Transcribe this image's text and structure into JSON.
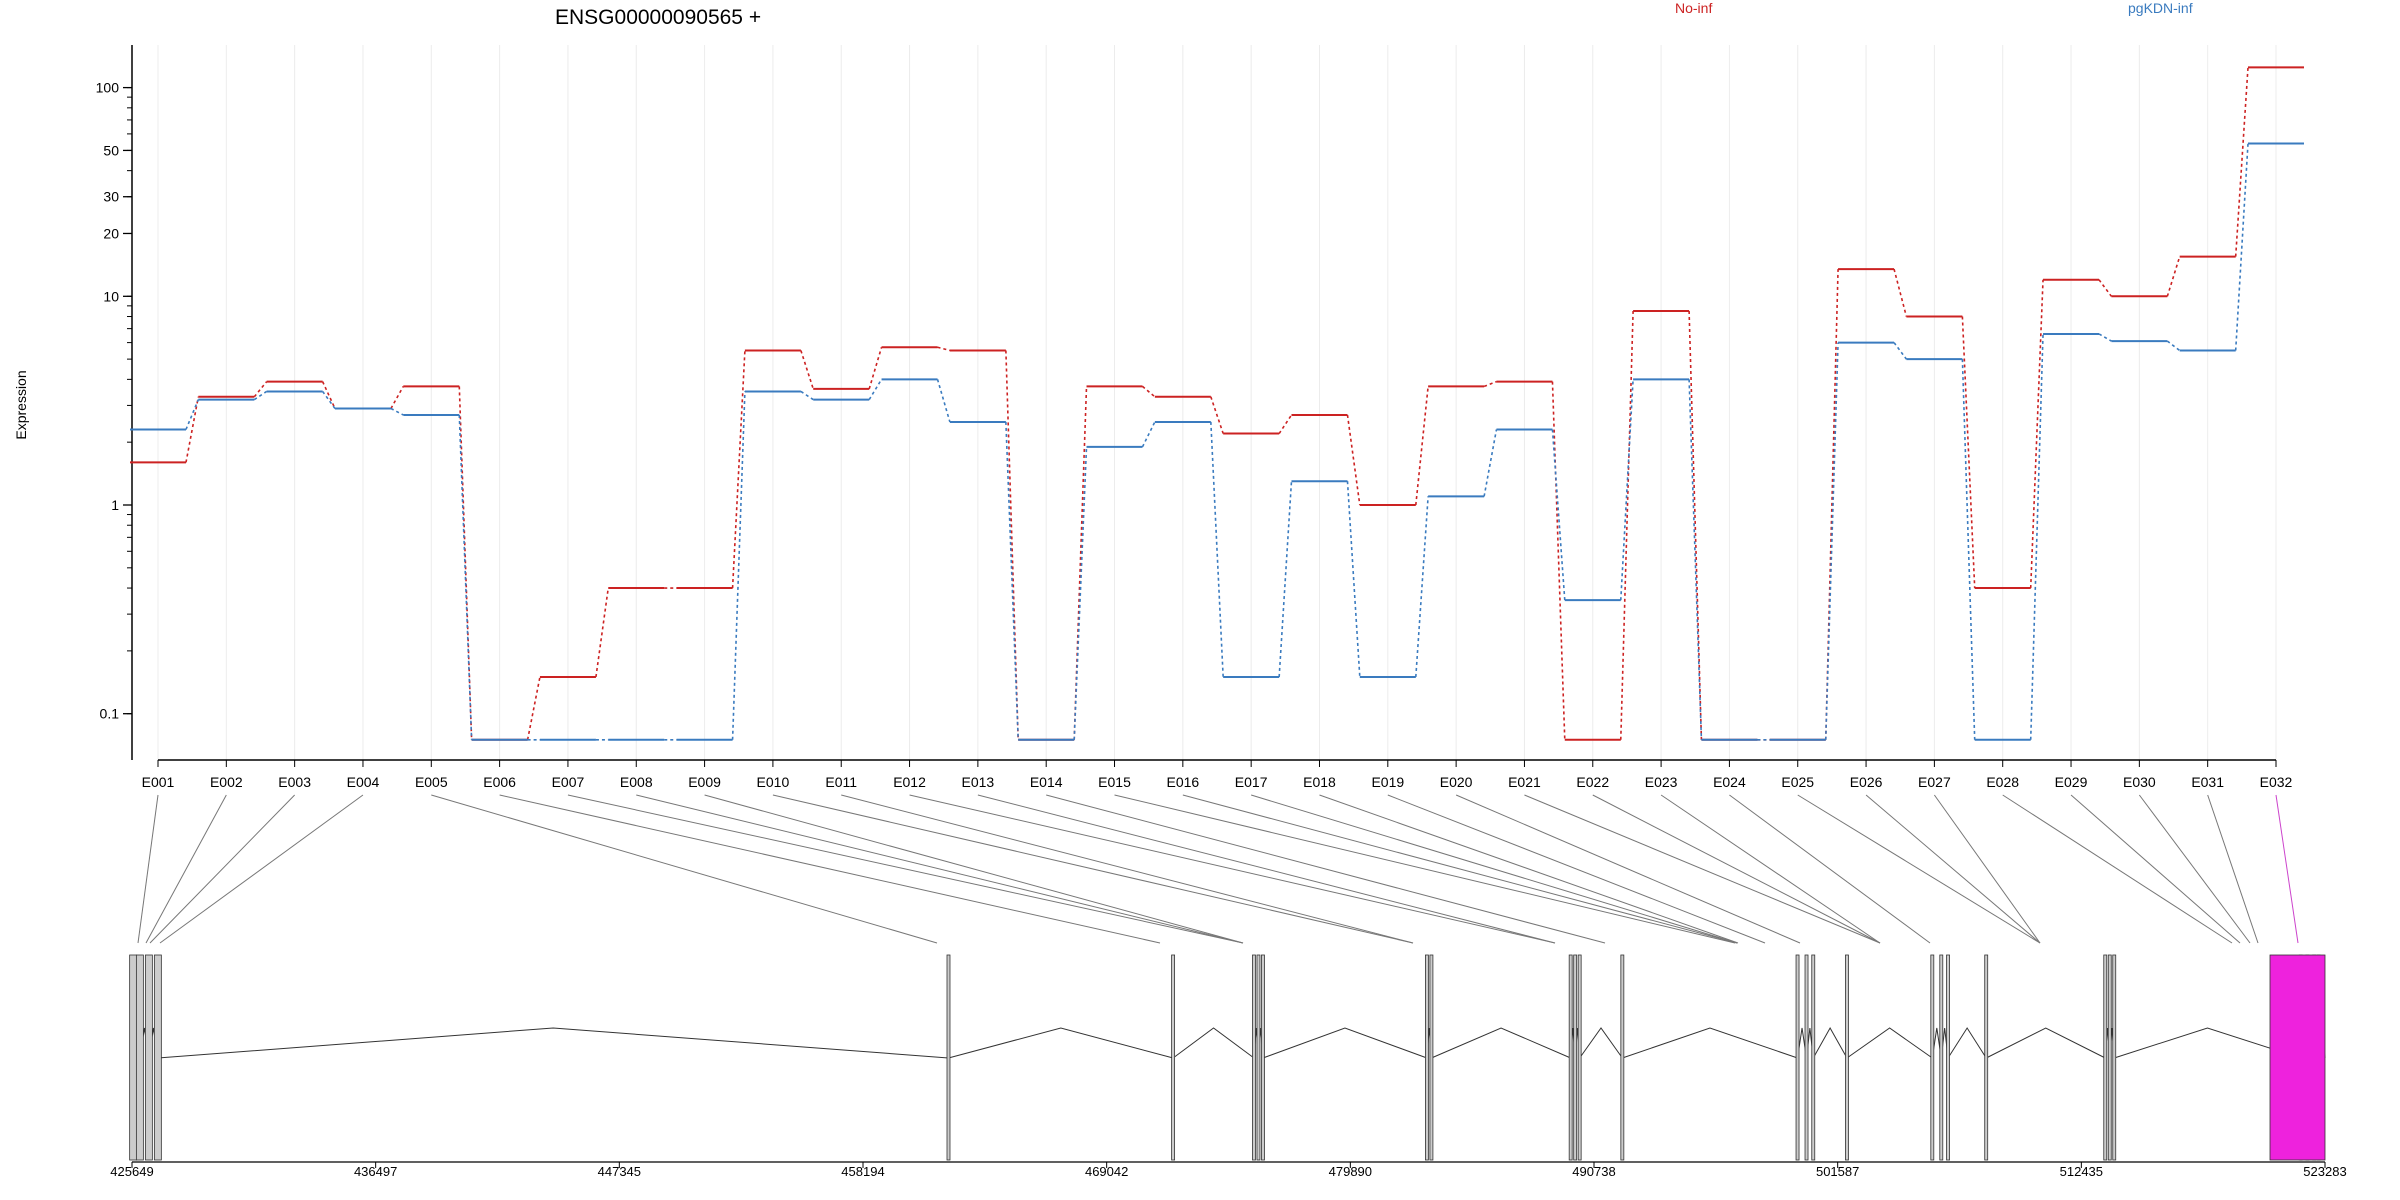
{
  "chart_data": {
    "type": "line",
    "title": "ENSG00000090565 +",
    "ylabel": "Expression",
    "y_scale": "log",
    "ylim": [
      0.06,
      160
    ],
    "y_ticks": [
      {
        "value": 0.1,
        "label": "0.1"
      },
      {
        "value": 1,
        "label": "1"
      },
      {
        "value": 10,
        "label": "10"
      },
      {
        "value": 20,
        "label": "20"
      },
      {
        "value": 30,
        "label": "30"
      },
      {
        "value": 50,
        "label": "50"
      },
      {
        "value": 100,
        "label": "100"
      }
    ],
    "categories": [
      "E001",
      "E002",
      "E003",
      "E004",
      "E005",
      "E006",
      "E007",
      "E008",
      "E009",
      "E010",
      "E011",
      "E012",
      "E013",
      "E014",
      "E015",
      "E016",
      "E017",
      "E018",
      "E019",
      "E020",
      "E021",
      "E022",
      "E023",
      "E024",
      "E025",
      "E026",
      "E027",
      "E028",
      "E029",
      "E030",
      "E031",
      "E032"
    ],
    "series": [
      {
        "name": "No-inf",
        "color": "#cc2222",
        "values": [
          1.6,
          3.3,
          3.9,
          2.9,
          3.7,
          0.075,
          0.15,
          0.4,
          0.4,
          5.5,
          3.6,
          5.7,
          5.5,
          0.075,
          3.7,
          3.3,
          2.2,
          2.7,
          1.0,
          3.7,
          3.9,
          0.075,
          8.5,
          0.075,
          0.075,
          13.5,
          8.0,
          0.4,
          12.0,
          10.0,
          15.5,
          125
        ]
      },
      {
        "name": "pgKDN-inf",
        "color": "#3a7bbf",
        "values": [
          2.3,
          3.2,
          3.5,
          2.9,
          2.7,
          0.075,
          0.075,
          0.075,
          0.075,
          3.5,
          3.2,
          4.0,
          2.5,
          0.075,
          1.9,
          2.5,
          0.15,
          1.3,
          0.15,
          1.1,
          2.3,
          0.35,
          4.0,
          0.075,
          0.075,
          6.0,
          5.0,
          0.075,
          6.6,
          6.1,
          5.5,
          54
        ]
      }
    ],
    "gene_model": {
      "x_ticks": [
        425649,
        436497,
        447345,
        458194,
        469042,
        479890,
        490738,
        501587,
        512435,
        523283
      ],
      "xlim": [
        425649,
        523283
      ],
      "highlight_color": "#ee22dd",
      "exon_positions": [
        425700,
        426000,
        426400,
        426800,
        462000,
        472000,
        475600,
        475800,
        476000,
        483300,
        483500,
        489700,
        489900,
        490100,
        492000,
        499800,
        500200,
        500500,
        502000,
        505800,
        506200,
        506500,
        508200,
        513500,
        513700,
        513900,
        522200,
        522500,
        522800,
        523000,
        523283
      ]
    }
  }
}
